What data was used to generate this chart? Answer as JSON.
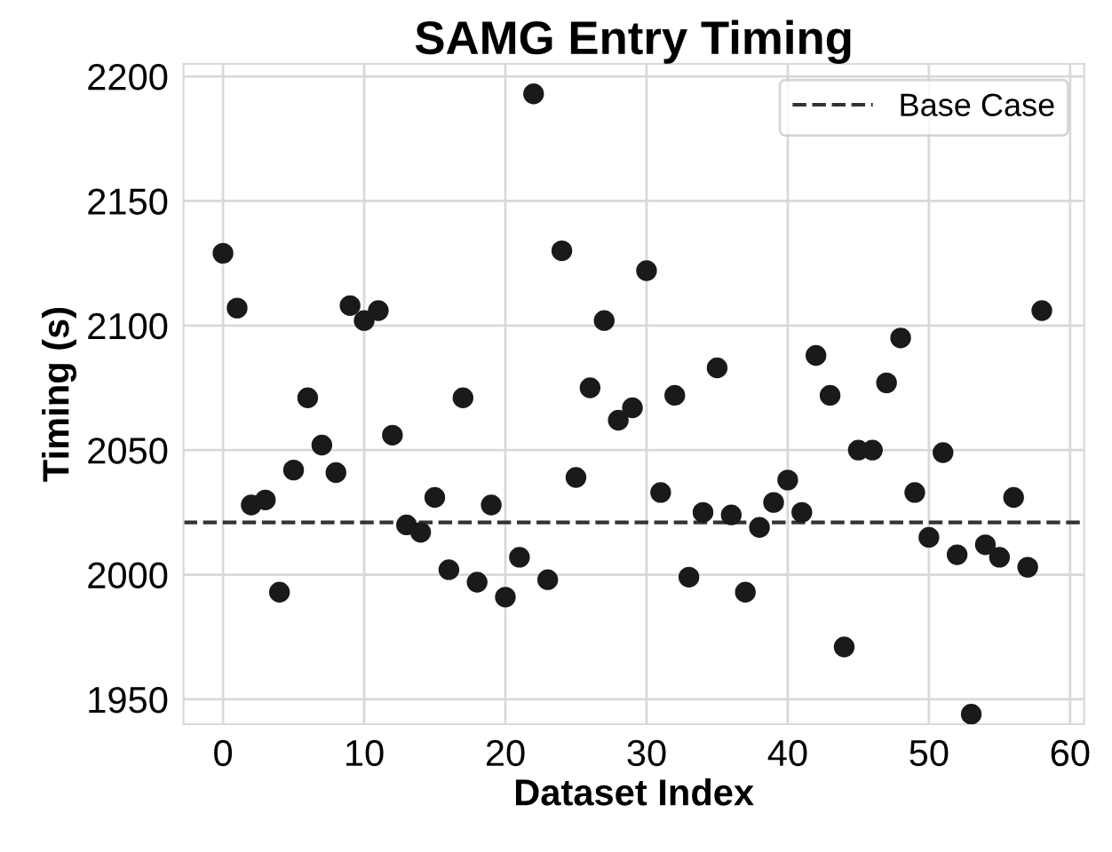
{
  "chart_data": {
    "type": "scatter",
    "title": "SAMG Entry Timing",
    "xlabel": "Dataset Index",
    "ylabel": "Timing (s)",
    "x": [
      0,
      1,
      2,
      3,
      4,
      5,
      6,
      7,
      8,
      9,
      10,
      11,
      12,
      13,
      14,
      15,
      16,
      17,
      18,
      19,
      20,
      21,
      22,
      23,
      24,
      25,
      26,
      27,
      28,
      29,
      30,
      31,
      32,
      33,
      34,
      35,
      36,
      37,
      38,
      39,
      40,
      41,
      42,
      43,
      44,
      45,
      46,
      47,
      48,
      49,
      50,
      51,
      52,
      53,
      54,
      55,
      56,
      57,
      58
    ],
    "series": [
      {
        "color": "#1a1a1a",
        "values": [
          2129,
          2107,
          2028,
          2030,
          1993,
          2042,
          2071,
          2052,
          2041,
          2108,
          2102,
          2106,
          2056,
          2020,
          2017,
          2031,
          2002,
          2071,
          1997,
          2028,
          1991,
          2007,
          2193,
          1998,
          2130,
          2039,
          2075,
          2102,
          2062,
          2067,
          2122,
          2033,
          2072,
          1999,
          2025,
          2083,
          2024,
          1993,
          2019,
          2029,
          2038,
          2025,
          2088,
          2072,
          1971,
          2050,
          2050,
          2077,
          2095,
          2033,
          2015,
          2049,
          2008,
          1944,
          2012,
          2007,
          2031,
          2003,
          2106
        ]
      }
    ],
    "ref_lines": [
      {
        "axis": "y",
        "value": 2021,
        "label": "Base Case",
        "color": "#333333",
        "line_style": "dashed"
      }
    ],
    "xlim": [
      -2.8,
      61
    ],
    "ylim": [
      1940,
      2205
    ],
    "xticks": [
      0,
      10,
      20,
      30,
      40,
      50,
      60
    ],
    "yticks": [
      1950,
      2000,
      2050,
      2100,
      2150,
      2200
    ],
    "grid": true,
    "legend": "top right",
    "marker": "circle"
  }
}
